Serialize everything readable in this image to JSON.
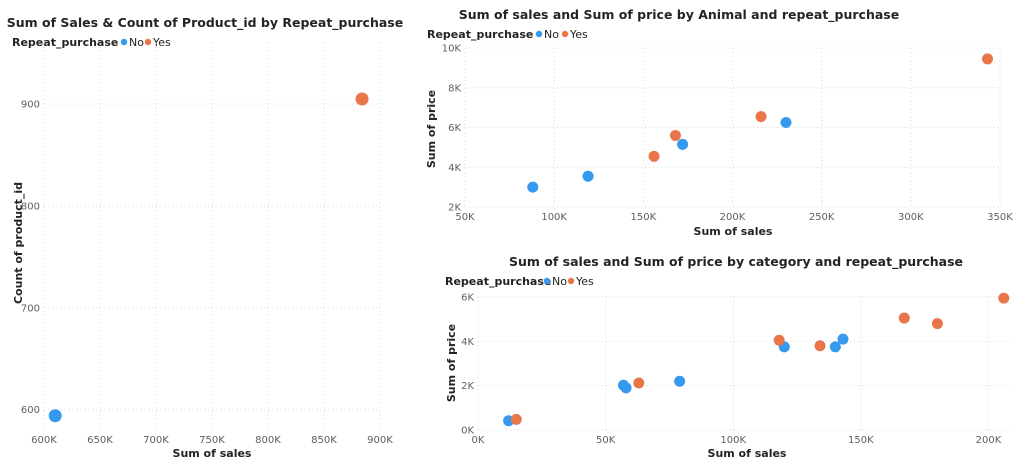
{
  "colors": {
    "No": "#3599f0",
    "Yes": "#e8764a"
  },
  "chart_data": [
    {
      "type": "scatter",
      "title": "Sum of Sales & Count of Product_id by Repeat_purchase",
      "xlabel": "Sum of sales",
      "ylabel": "Count of product_id",
      "legend_title": "Repeat_purchase",
      "legend": [
        "No",
        "Yes"
      ],
      "legend_placement": "top-left",
      "grid": true,
      "xlim": [
        600000,
        900000
      ],
      "ylim": [
        580,
        960
      ],
      "xticks": [
        600000,
        650000,
        700000,
        750000,
        800000,
        850000,
        900000
      ],
      "xtick_labels": [
        "600K",
        "650K",
        "700K",
        "750K",
        "800K",
        "850K",
        "900K"
      ],
      "yticks": [
        600,
        700,
        800,
        900
      ],
      "ytick_labels": [
        "600",
        "700",
        "800",
        "900"
      ],
      "series": [
        {
          "name": "No",
          "points": [
            [
              610000,
              594
            ]
          ]
        },
        {
          "name": "Yes",
          "points": [
            [
              884000,
              905
            ]
          ]
        }
      ]
    },
    {
      "type": "scatter",
      "title": "Sum of sales and Sum of price by Animal and repeat_purchase",
      "xlabel": "Sum of sales",
      "ylabel": "Sum of price",
      "legend_title": "Repeat_purchase",
      "legend": [
        "No",
        "Yes"
      ],
      "legend_placement": "top-left",
      "grid": true,
      "xlim": [
        50000,
        350000
      ],
      "ylim": [
        2000,
        10000
      ],
      "xticks": [
        50000,
        100000,
        150000,
        200000,
        250000,
        300000,
        350000
      ],
      "xtick_labels": [
        "50K",
        "100K",
        "150K",
        "200K",
        "250K",
        "300K",
        "350K"
      ],
      "yticks": [
        2000,
        4000,
        6000,
        8000,
        10000
      ],
      "ytick_labels": [
        "2K",
        "4K",
        "6K",
        "8K",
        "10K"
      ],
      "series": [
        {
          "name": "No",
          "points": [
            [
              88000,
              3000
            ],
            [
              119000,
              3550
            ],
            [
              172000,
              5150
            ],
            [
              230000,
              6250
            ]
          ]
        },
        {
          "name": "Yes",
          "points": [
            [
              156000,
              4550
            ],
            [
              168000,
              5600
            ],
            [
              216000,
              6550
            ],
            [
              343000,
              9450
            ]
          ]
        }
      ]
    },
    {
      "type": "scatter",
      "title": "Sum of sales and Sum of price by category and repeat_purchase",
      "xlabel": "Sum of sales",
      "ylabel": "Sum of price",
      "legend_title": "Repeat_purchase",
      "legend": [
        "No",
        "Yes"
      ],
      "legend_placement": "top-left",
      "grid": true,
      "xlim": [
        0,
        210000
      ],
      "ylim": [
        0,
        6000
      ],
      "xticks": [
        0,
        50000,
        100000,
        150000,
        200000
      ],
      "xtick_labels": [
        "0K",
        "50K",
        "100K",
        "150K",
        "200K"
      ],
      "yticks": [
        0,
        2000,
        4000,
        6000
      ],
      "ytick_labels": [
        "0K",
        "2K",
        "4K",
        "6K"
      ],
      "series": [
        {
          "name": "No",
          "points": [
            [
              12000,
              420
            ],
            [
              57000,
              2020
            ],
            [
              58000,
              1900
            ],
            [
              79000,
              2200
            ],
            [
              120000,
              3750
            ],
            [
              140000,
              3750
            ],
            [
              143000,
              4100
            ]
          ]
        },
        {
          "name": "Yes",
          "points": [
            [
              15000,
              480
            ],
            [
              63000,
              2120
            ],
            [
              118000,
              4050
            ],
            [
              134000,
              3800
            ],
            [
              167000,
              5050
            ],
            [
              180000,
              4800
            ],
            [
              206000,
              5950
            ]
          ]
        }
      ]
    }
  ]
}
